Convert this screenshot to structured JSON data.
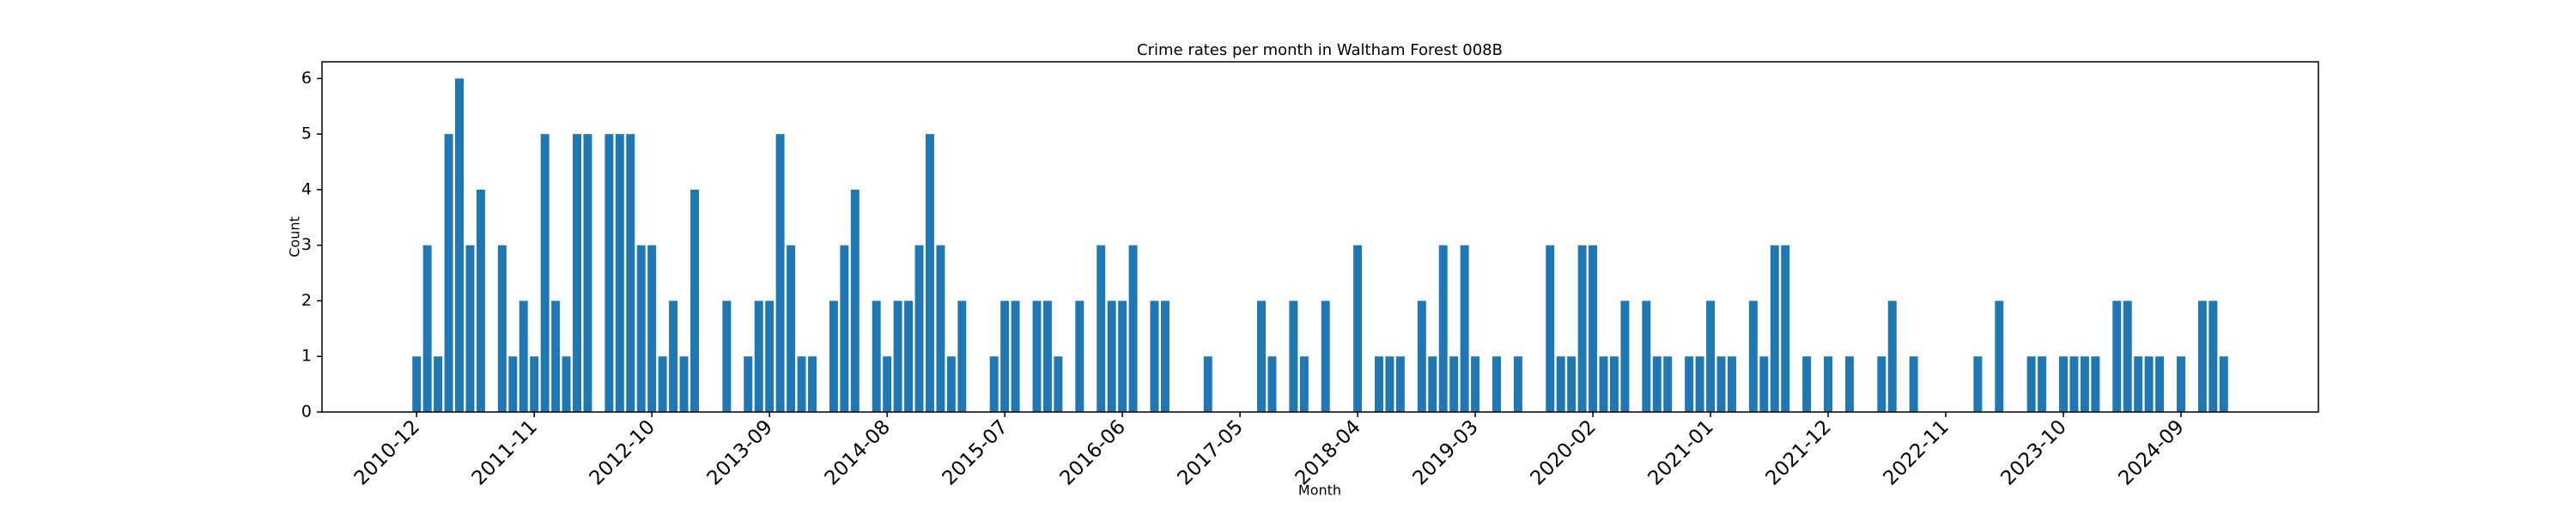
{
  "chart_data": {
    "type": "bar",
    "title": "Crime rates per month in Waltham Forest 008B",
    "x_label": "Month",
    "y_label": "Count",
    "color": "#1f77b4",
    "categories": [
      "2010-12",
      null,
      null,
      null,
      null,
      null,
      null,
      null,
      null,
      null,
      null,
      "2011-11",
      null,
      null,
      null,
      null,
      null,
      null,
      null,
      null,
      null,
      null,
      "2012-10",
      null,
      null,
      null,
      null,
      null,
      null,
      null,
      null,
      null,
      null,
      "2013-09",
      null,
      null,
      null,
      null,
      null,
      null,
      null,
      null,
      null,
      null,
      "2014-08",
      null,
      null,
      null,
      null,
      null,
      null,
      null,
      null,
      null,
      null,
      "2015-07",
      null,
      null,
      null,
      null,
      null,
      null,
      null,
      null,
      null,
      null,
      "2016-06",
      null,
      null,
      null,
      null,
      null,
      null,
      null,
      null,
      null,
      null,
      "2017-05",
      null,
      null,
      null,
      null,
      null,
      null,
      null,
      null,
      null,
      null,
      "2018-04",
      null,
      null,
      null,
      null,
      null,
      null,
      null,
      null,
      null,
      null,
      "2019-03",
      null,
      null,
      null,
      null,
      null,
      null,
      null,
      null,
      null,
      null,
      "2020-02",
      null,
      null,
      null,
      null,
      null,
      null,
      null,
      null,
      null,
      null,
      "2021-01",
      null,
      null,
      null,
      null,
      null,
      null,
      null,
      null,
      null,
      null,
      "2021-12",
      null,
      null,
      null,
      null,
      null,
      null,
      null,
      null,
      null,
      null,
      "2022-11",
      null,
      null,
      null,
      null,
      null,
      null,
      null,
      null,
      null,
      null,
      "2023-10",
      null,
      null,
      null,
      null,
      null,
      null,
      null,
      null,
      null,
      null,
      "2024-09",
      null,
      null,
      null,
      null
    ],
    "values": [
      1,
      3,
      1,
      5,
      6,
      3,
      4,
      0,
      3,
      1,
      2,
      1,
      5,
      2,
      1,
      5,
      5,
      0,
      5,
      5,
      5,
      3,
      3,
      1,
      2,
      1,
      4,
      0,
      0,
      2,
      0,
      1,
      2,
      2,
      5,
      3,
      1,
      1,
      0,
      2,
      3,
      4,
      0,
      2,
      1,
      2,
      2,
      3,
      5,
      3,
      1,
      2,
      0,
      0,
      1,
      2,
      2,
      0,
      2,
      2,
      1,
      0,
      2,
      0,
      3,
      2,
      2,
      3,
      0,
      2,
      2,
      0,
      0,
      0,
      1,
      0,
      0,
      0,
      0,
      2,
      1,
      0,
      2,
      1,
      0,
      2,
      0,
      0,
      3,
      0,
      1,
      1,
      1,
      0,
      2,
      1,
      3,
      1,
      3,
      1,
      0,
      1,
      0,
      1,
      0,
      0,
      3,
      1,
      1,
      3,
      3,
      1,
      1,
      2,
      0,
      2,
      1,
      1,
      0,
      1,
      1,
      2,
      1,
      1,
      0,
      2,
      1,
      3,
      3,
      0,
      1,
      0,
      1,
      0,
      1,
      0,
      0,
      1,
      2,
      0,
      1,
      0,
      0,
      0,
      0,
      0,
      1,
      0,
      2,
      0,
      0,
      1,
      1,
      0,
      1,
      1,
      1,
      1,
      0,
      2,
      2,
      1,
      1,
      1,
      0,
      1,
      0,
      2,
      2,
      1
    ],
    "ylim": [
      0,
      6.3
    ],
    "yticks": [
      0,
      1,
      2,
      3,
      4,
      5,
      6
    ],
    "grid": false
  }
}
